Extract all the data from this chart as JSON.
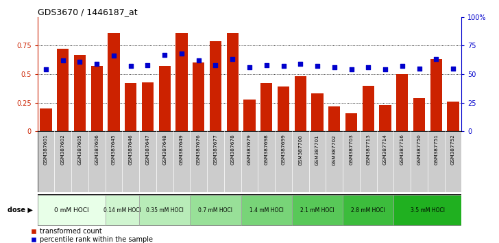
{
  "title": "GDS3670 / 1446187_at",
  "samples": [
    "GSM387601",
    "GSM387602",
    "GSM387605",
    "GSM387606",
    "GSM387645",
    "GSM387646",
    "GSM387647",
    "GSM387648",
    "GSM387649",
    "GSM387676",
    "GSM387677",
    "GSM387678",
    "GSM387679",
    "GSM387698",
    "GSM387699",
    "GSM387700",
    "GSM387701",
    "GSM387702",
    "GSM387703",
    "GSM387713",
    "GSM387714",
    "GSM387716",
    "GSM387750",
    "GSM387751",
    "GSM387752"
  ],
  "bar_values": [
    0.2,
    0.72,
    0.67,
    0.57,
    0.86,
    0.42,
    0.43,
    0.57,
    0.86,
    0.6,
    0.79,
    0.86,
    0.28,
    0.42,
    0.39,
    0.48,
    0.33,
    0.22,
    0.16,
    0.4,
    0.23,
    0.5,
    0.29,
    0.63,
    0.26
  ],
  "dot_values": [
    0.54,
    0.62,
    0.61,
    0.59,
    0.66,
    0.57,
    0.58,
    0.67,
    0.68,
    0.62,
    0.58,
    0.63,
    0.56,
    0.58,
    0.57,
    0.59,
    0.57,
    0.56,
    0.54,
    0.56,
    0.54,
    0.57,
    0.55,
    0.63,
    0.55
  ],
  "dose_groups": [
    {
      "label": "0 mM HOCl",
      "start": 0,
      "end": 4,
      "shade": "#e8ffe8"
    },
    {
      "label": "0.14 mM HOCl",
      "start": 4,
      "end": 6,
      "shade": "#d0f5d0"
    },
    {
      "label": "0.35 mM HOCl",
      "start": 6,
      "end": 9,
      "shade": "#b8ecb8"
    },
    {
      "label": "0.7 mM HOCl",
      "start": 9,
      "end": 12,
      "shade": "#98e098"
    },
    {
      "label": "1.4 mM HOCl",
      "start": 12,
      "end": 15,
      "shade": "#78d478"
    },
    {
      "label": "2.1 mM HOCl",
      "start": 15,
      "end": 18,
      "shade": "#58c858"
    },
    {
      "label": "2.8 mM HOCl",
      "start": 18,
      "end": 21,
      "shade": "#3cbc3c"
    },
    {
      "label": "3.5 mM HOCl",
      "start": 21,
      "end": 25,
      "shade": "#20b020"
    }
  ],
  "bar_color": "#cc2200",
  "dot_color": "#0000cc",
  "left_axis_color": "#cc2200",
  "right_axis_color": "#0000cc",
  "background_color": "#ffffff",
  "xticklabel_bg": "#cccccc",
  "ylim_left": [
    0,
    1.0
  ],
  "ylim_right": [
    0,
    100
  ],
  "yticks_left": [
    0,
    0.25,
    0.5,
    0.75
  ],
  "ytick_labels_left": [
    "0",
    "0.25",
    "0.5",
    "0.75"
  ],
  "yticks_right": [
    0,
    25,
    50,
    75,
    100
  ],
  "ytick_labels_right": [
    "0",
    "25",
    "50",
    "75",
    "100%"
  ],
  "legend_items": [
    "transformed count",
    "percentile rank within the sample"
  ],
  "dose_label": "dose"
}
